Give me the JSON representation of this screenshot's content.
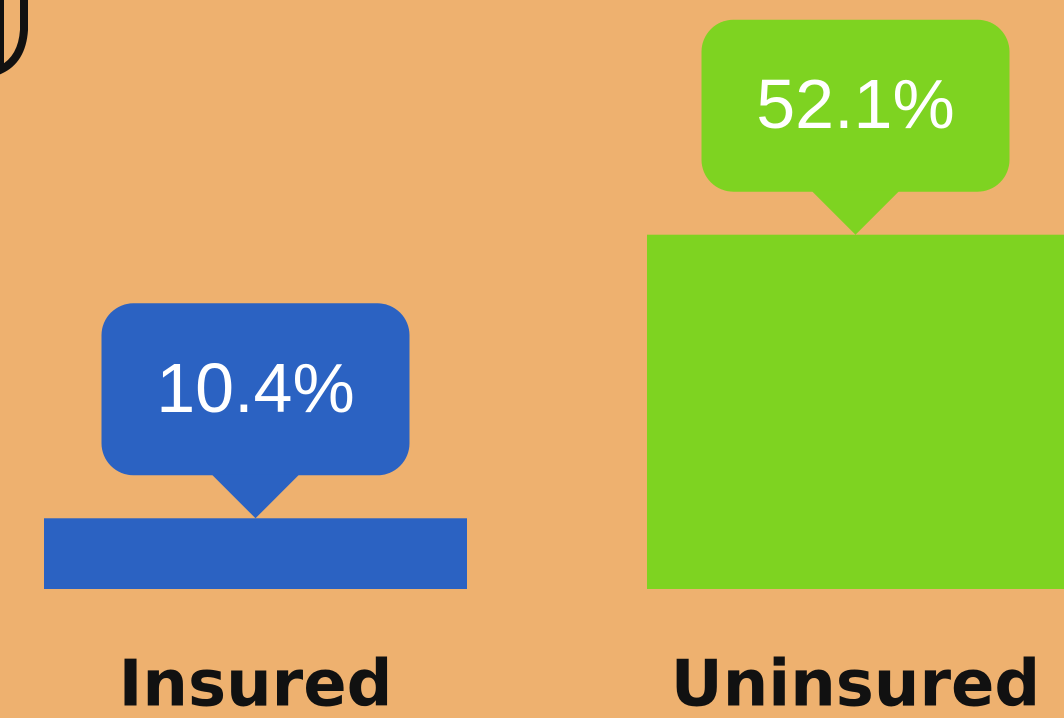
{
  "chart_data": {
    "type": "bar",
    "categories": [
      "Insured",
      "Uninsured"
    ],
    "values": [
      10.4,
      52.1
    ],
    "value_labels": [
      "10.4%",
      "52.1%"
    ],
    "colors": [
      "#2b62c2",
      "#7ed321"
    ]
  }
}
